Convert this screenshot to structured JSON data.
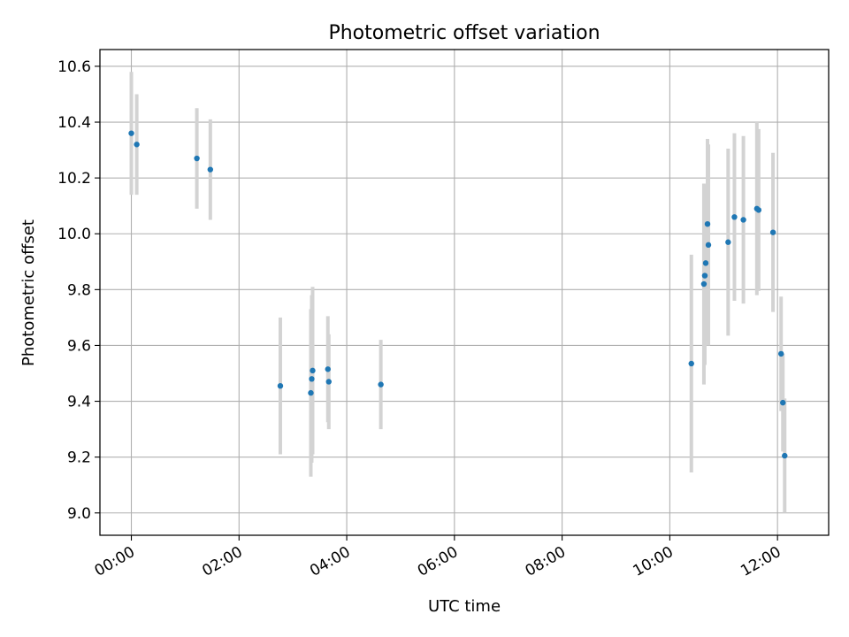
{
  "chart_data": {
    "type": "scatter",
    "title": "Photometric offset variation",
    "xlabel": "UTC time",
    "ylabel": "Photometric offset",
    "x_unit": "hours",
    "xlim": [
      "23:25",
      "12:57"
    ],
    "ylim": [
      8.92,
      10.66
    ],
    "x_ticks": [
      "00:00",
      "02:00",
      "04:00",
      "06:00",
      "08:00",
      "10:00",
      "12:00"
    ],
    "y_ticks": [
      "9.0",
      "9.2",
      "9.4",
      "9.6",
      "9.8",
      "10.0",
      "10.2",
      "10.4",
      "10.6"
    ],
    "grid": true,
    "colors": {
      "points": "#1f77b4",
      "error_bars": "#d3d3d3",
      "grid": "#b0b0b0"
    },
    "points": [
      {
        "x": "00:00",
        "y": 10.36,
        "err": 0.22
      },
      {
        "x": "00:06",
        "y": 10.32,
        "err": 0.18
      },
      {
        "x": "01:13",
        "y": 10.27,
        "err": 0.18
      },
      {
        "x": "01:28",
        "y": 10.23,
        "err": 0.18
      },
      {
        "x": "02:46",
        "y": 9.455,
        "err": 0.245
      },
      {
        "x": "03:20",
        "y": 9.43,
        "err": 0.3
      },
      {
        "x": "03:21",
        "y": 9.48,
        "err": 0.3
      },
      {
        "x": "03:22",
        "y": 9.51,
        "err": 0.3
      },
      {
        "x": "03:39",
        "y": 9.515,
        "err": 0.19
      },
      {
        "x": "03:40",
        "y": 9.47,
        "err": 0.17
      },
      {
        "x": "04:38",
        "y": 9.46,
        "err": 0.16
      },
      {
        "x": "10:24",
        "y": 9.535,
        "err": 0.39
      },
      {
        "x": "10:38",
        "y": 9.82,
        "err": 0.36
      },
      {
        "x": "10:39",
        "y": 9.85,
        "err": 0.32
      },
      {
        "x": "10:40",
        "y": 9.895,
        "err": 0.28
      },
      {
        "x": "10:42",
        "y": 10.035,
        "err": 0.305
      },
      {
        "x": "10:43",
        "y": 9.96,
        "err": 0.36
      },
      {
        "x": "11:05",
        "y": 9.97,
        "err": 0.335
      },
      {
        "x": "11:12",
        "y": 10.06,
        "err": 0.3
      },
      {
        "x": "11:22",
        "y": 10.05,
        "err": 0.3
      },
      {
        "x": "11:37",
        "y": 10.09,
        "err": 0.31
      },
      {
        "x": "11:39",
        "y": 10.085,
        "err": 0.29
      },
      {
        "x": "11:55",
        "y": 10.005,
        "err": 0.285
      },
      {
        "x": "12:04",
        "y": 9.57,
        "err": 0.205
      },
      {
        "x": "12:06",
        "y": 9.395,
        "err": 0.175
      },
      {
        "x": "12:08",
        "y": 9.205,
        "err": 0.205
      }
    ]
  }
}
